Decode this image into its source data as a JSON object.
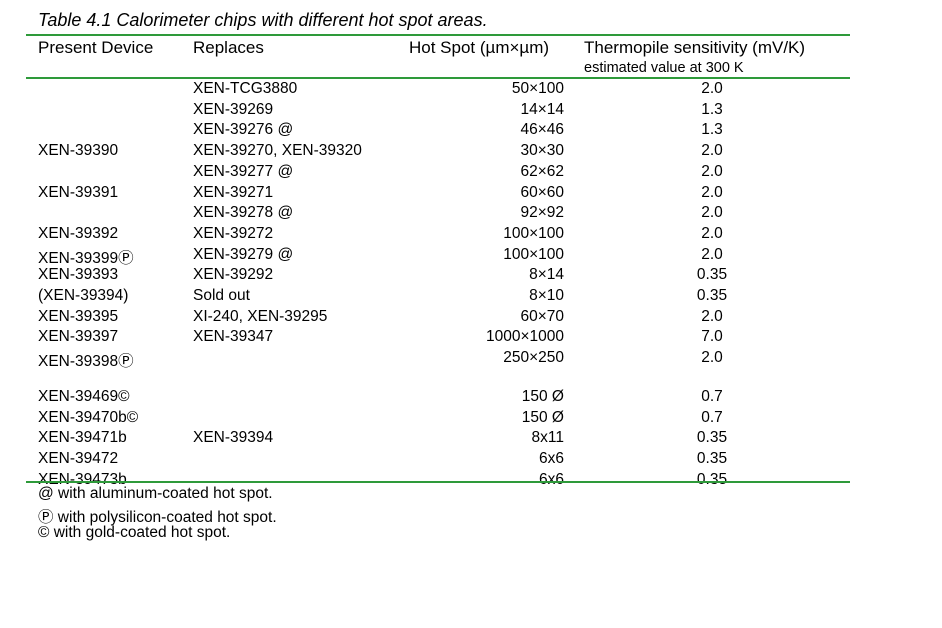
{
  "caption": "Table 4.1 Calorimeter chips with different hot spot areas.",
  "headers": {
    "device": "Present Device",
    "replaces": "Replaces",
    "hotspot": "Hot Spot (µm×µm)",
    "sensitivity": "Thermopile sensitivity (mV/K)",
    "sensitivity_note": "estimated value at 300 K"
  },
  "rows": [
    {
      "device": "",
      "replaces": "XEN-TCG3880",
      "hotspot": "50×100",
      "sensitivity": "2.0"
    },
    {
      "device": "",
      "replaces": "XEN-39269",
      "hotspot": "14×14",
      "sensitivity": "1.3"
    },
    {
      "device": "",
      "replaces": "XEN-39276 @",
      "hotspot": "46×46",
      "sensitivity": "1.3"
    },
    {
      "device": "XEN-39390",
      "replaces": "XEN-39270, XEN-39320",
      "hotspot": "30×30",
      "sensitivity": "2.0"
    },
    {
      "device": "",
      "replaces": "XEN-39277 @",
      "hotspot": "62×62",
      "sensitivity": "2.0"
    },
    {
      "device": "XEN-39391",
      "replaces": "XEN-39271",
      "hotspot": "60×60",
      "sensitivity": "2.0"
    },
    {
      "device": "",
      "replaces": "XEN-39278 @",
      "hotspot": "92×92",
      "sensitivity": "2.0"
    },
    {
      "device": "XEN-39392",
      "replaces": "XEN-39272",
      "hotspot": "100×100",
      "sensitivity": "2.0"
    },
    {
      "device": "XEN-39399Ⓟ",
      "replaces": "XEN-39279 @",
      "hotspot": "100×100",
      "sensitivity": "2.0"
    },
    {
      "device": "XEN-39393",
      "replaces": "XEN-39292",
      "hotspot": "8×14",
      "sensitivity": "0.35"
    },
    {
      "device": "(XEN-39394)",
      "replaces": "Sold out",
      "hotspot": "8×10",
      "sensitivity": "0.35"
    },
    {
      "device": "XEN-39395",
      "replaces": "XI-240, XEN-39295",
      "hotspot": "60×70",
      "sensitivity": "2.0"
    },
    {
      "device": "XEN-39397",
      "replaces": "XEN-39347",
      "hotspot": "1000×1000",
      "sensitivity": "7.0"
    },
    {
      "device": "XEN-39398Ⓟ",
      "replaces": "",
      "hotspot": "250×250",
      "sensitivity": "2.0"
    },
    {
      "device": "XEN-39469©",
      "replaces": "",
      "hotspot": "150 Ø",
      "sensitivity": "0.7"
    },
    {
      "device": "XEN-39470b©",
      "replaces": "",
      "hotspot": "150 Ø",
      "sensitivity": "0.7"
    },
    {
      "device": "XEN-39471b",
      "replaces": "XEN-39394",
      "hotspot": "8x11",
      "sensitivity": "0.35"
    },
    {
      "device": "XEN-39472",
      "replaces": "",
      "hotspot": "6x6",
      "sensitivity": "0.35"
    },
    {
      "device": "XEN-39473b",
      "replaces": "",
      "hotspot": "6x6",
      "sensitivity": "0.35"
    }
  ],
  "footnotes": [
    "@ with aluminum-coated hot spot.",
    "Ⓟ with polysilicon-coated hot spot.",
    "© with gold-coated hot spot."
  ],
  "colors": {
    "rule": "#2e9a3a"
  }
}
